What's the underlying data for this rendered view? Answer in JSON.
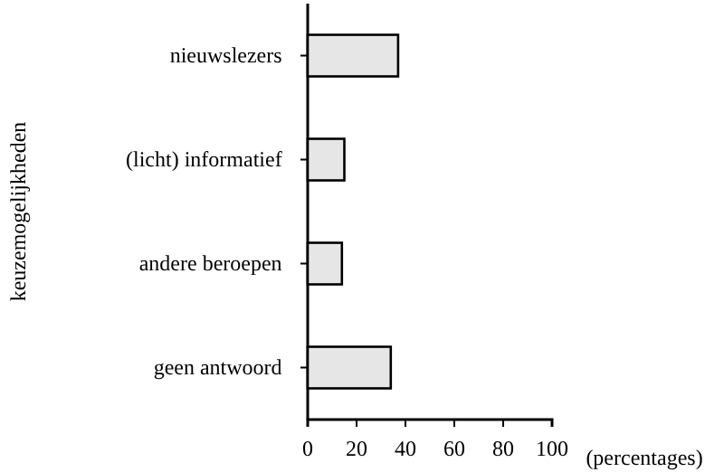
{
  "chart_data": {
    "type": "bar",
    "orientation": "horizontal",
    "categories": [
      "nieuwslezers",
      "(licht) informatief",
      "andere beroepen",
      "geen antwoord"
    ],
    "values": [
      37,
      15,
      14,
      34
    ],
    "color": "#e6e6e6",
    "xlim": [
      0,
      100
    ],
    "xticks": [
      0,
      20,
      40,
      60,
      80,
      100
    ],
    "xlabel": "(percentages)",
    "ylabel": "keuzemogelijkheden",
    "grid": false
  }
}
